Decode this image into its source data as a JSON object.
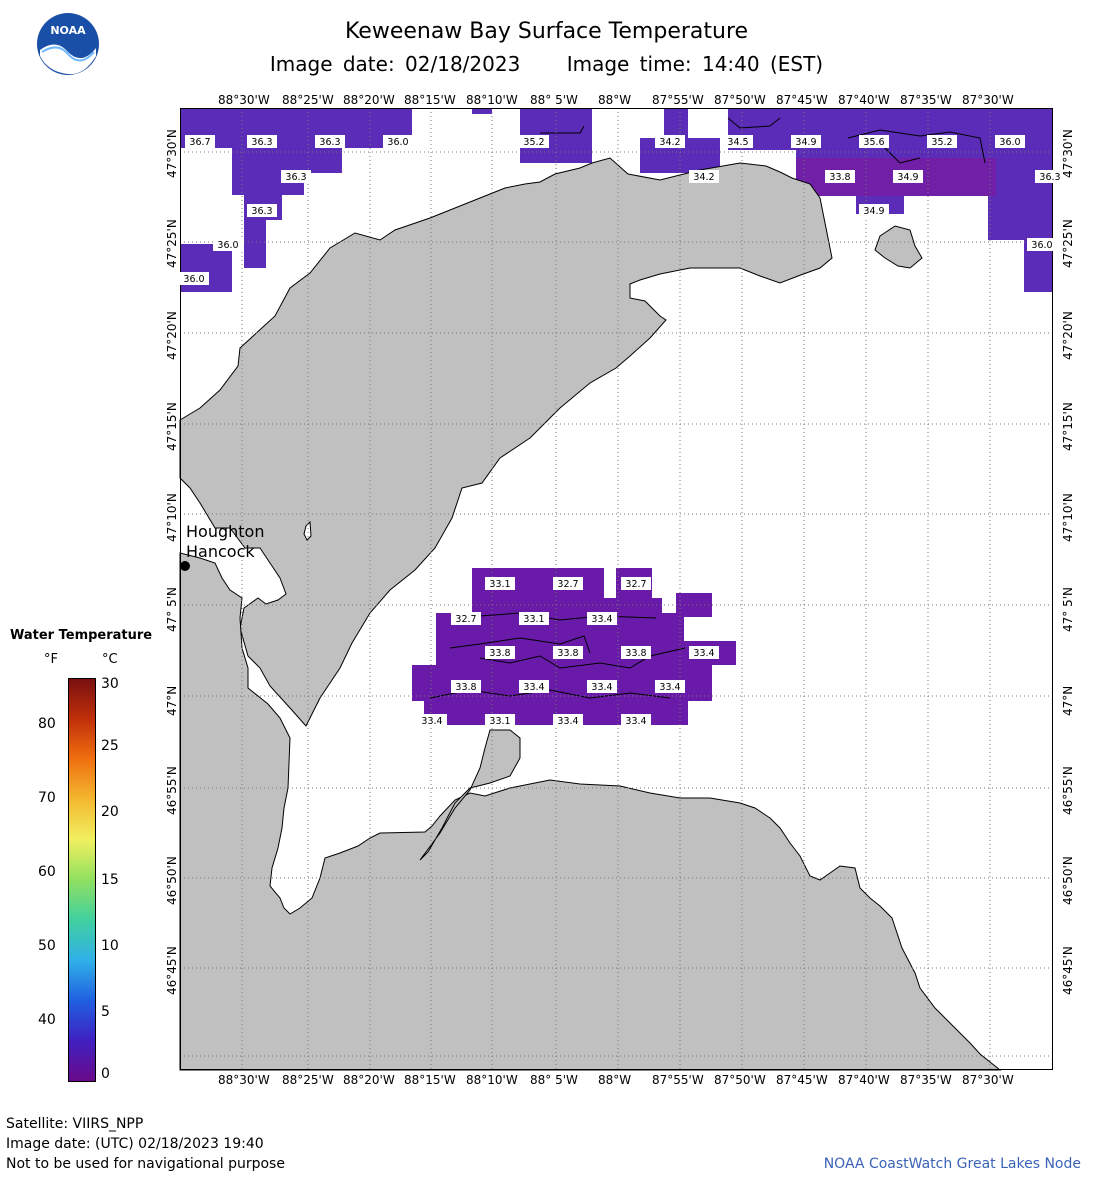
{
  "header": {
    "title": "Keweenaw Bay Surface Temperature",
    "image_date": "Image date: 02/18/2023",
    "image_time": "Image time: 14:40 (EST)"
  },
  "logo": {
    "text": "NOAA",
    "icon": "noaa-logo-icon"
  },
  "axes": {
    "lon_labels": [
      "88°30'W",
      "88°25'W",
      "88°20'W",
      "88°15'W",
      "88°10'W",
      "88° 5'W",
      "88°W",
      "87°55'W",
      "87°50'W",
      "87°45'W",
      "87°40'W",
      "87°35'W",
      "87°30'W"
    ],
    "lat_labels": [
      "47°30'N",
      "47°25'N",
      "47°20'N",
      "47°15'N",
      "47°10'N",
      "47° 5'N",
      "47°N",
      "46°55'N",
      "46°50'N",
      "46°45'N"
    ]
  },
  "places": {
    "houghton": "Houghton",
    "hancock": "Hancock"
  },
  "legend": {
    "title": "Water Temperature",
    "unit_f": "°F",
    "unit_c": "°C",
    "f_ticks": [
      "80",
      "70",
      "60",
      "50",
      "40"
    ],
    "c_ticks": [
      "30",
      "25",
      "20",
      "15",
      "10",
      "5",
      "0"
    ],
    "colors": [
      "#7a1010",
      "#c0300a",
      "#f07010",
      "#f4b830",
      "#f0f060",
      "#90e060",
      "#40d0a0",
      "#30b0e8",
      "#2060e0",
      "#4020c0",
      "#6a0a8a"
    ]
  },
  "temperature_labels": [
    {
      "v": "36.7"
    },
    {
      "v": "36.3"
    },
    {
      "v": "36.3"
    },
    {
      "v": "36.0"
    },
    {
      "v": "35.2"
    },
    {
      "v": "34.2"
    },
    {
      "v": "34.5"
    },
    {
      "v": "34.9"
    },
    {
      "v": "35.6"
    },
    {
      "v": "35.2"
    },
    {
      "v": "36.0"
    },
    {
      "v": "36.3"
    },
    {
      "v": "34.2"
    },
    {
      "v": "33.8"
    },
    {
      "v": "34.9"
    },
    {
      "v": "36.3"
    },
    {
      "v": "36.3"
    },
    {
      "v": "34.9"
    },
    {
      "v": "36.0"
    },
    {
      "v": "36.0"
    },
    {
      "v": "36.0"
    },
    {
      "v": "33.1"
    },
    {
      "v": "32.7"
    },
    {
      "v": "32.7"
    },
    {
      "v": "32.7"
    },
    {
      "v": "33.1"
    },
    {
      "v": "33.4"
    },
    {
      "v": "33.8"
    },
    {
      "v": "33.8"
    },
    {
      "v": "33.8"
    },
    {
      "v": "33.4"
    },
    {
      "v": "33.8"
    },
    {
      "v": "33.4"
    },
    {
      "v": "33.4"
    },
    {
      "v": "33.4"
    },
    {
      "v": "33.4"
    },
    {
      "v": "33.1"
    },
    {
      "v": "33.4"
    },
    {
      "v": "33.4"
    }
  ],
  "footer": {
    "satellite": "Satellite: VIIRS_NPP",
    "utc_date": "Image date: (UTC) 02/18/2023  19:40",
    "disclaimer": "Not to be used for navigational purpose",
    "credit": "NOAA CoastWatch Great Lakes Node"
  }
}
